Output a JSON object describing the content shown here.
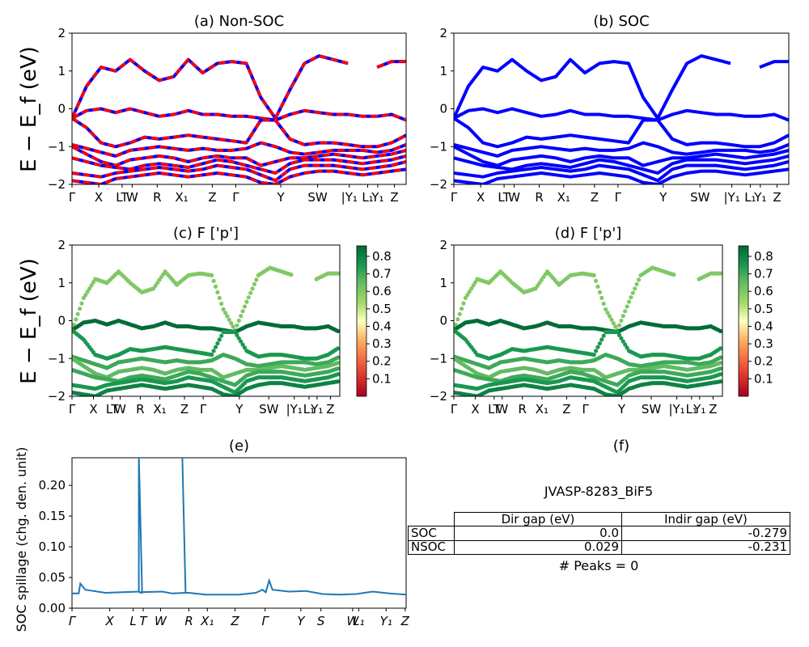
{
  "chart_data": [
    {
      "id": "a",
      "type": "line",
      "title": "(a) Non-SOC",
      "ylabel": "E − E_f (eV)",
      "ylim": [
        -2,
        2
      ],
      "yticks": [
        "2",
        "1",
        "0",
        "−1",
        "−2"
      ],
      "xticks": [
        "Γ",
        "X",
        "LT",
        "W",
        "R",
        "X₁",
        "Z",
        "Γ",
        "Y",
        "SW",
        "|Y₁",
        "L₁",
        "Y₁",
        "Z"
      ],
      "series": [
        {
          "color": "#0000ff",
          "style": "solid"
        },
        {
          "color": "#ff0000",
          "style": "dashed"
        }
      ],
      "bands_eV": [
        [
          -0.25,
          0.6,
          1.1,
          1.0,
          1.3,
          1.0,
          0.75,
          0.85,
          1.3,
          0.95,
          1.2,
          1.25,
          1.2,
          0.3,
          -0.25,
          0.5,
          1.2,
          1.4,
          1.3,
          1.2,
          null,
          1.1,
          1.25,
          1.25
        ],
        [
          -0.25,
          -0.05,
          0.0,
          -0.1,
          0.0,
          -0.1,
          -0.2,
          -0.15,
          -0.05,
          -0.15,
          -0.15,
          -0.2,
          -0.2,
          -0.25,
          -0.3,
          -0.15,
          -0.05,
          -0.1,
          -0.15,
          -0.15,
          -0.2,
          -0.2,
          -0.15,
          -0.3
        ],
        [
          -0.25,
          -0.5,
          -0.9,
          -1.0,
          -0.9,
          -0.75,
          -0.8,
          -0.75,
          -0.7,
          -0.75,
          -0.8,
          -0.85,
          -0.9,
          -0.3,
          -0.3,
          -0.8,
          -0.95,
          -0.9,
          -0.9,
          -0.95,
          -1.0,
          -1.0,
          -0.9,
          -0.7
        ],
        [
          -0.95,
          -1.05,
          -1.15,
          -1.25,
          -1.1,
          -1.05,
          -1.0,
          -1.05,
          -1.1,
          -1.05,
          -1.1,
          -1.1,
          -1.05,
          -0.9,
          -1.0,
          -1.15,
          -1.2,
          -1.15,
          -1.1,
          -1.1,
          -1.1,
          -1.15,
          -1.1,
          -0.95
        ],
        [
          -1.0,
          -1.2,
          -1.4,
          -1.5,
          -1.35,
          -1.3,
          -1.25,
          -1.3,
          -1.4,
          -1.3,
          -1.25,
          -1.3,
          -1.3,
          -1.5,
          -1.4,
          -1.3,
          -1.3,
          -1.25,
          -1.2,
          -1.25,
          -1.3,
          -1.25,
          -1.2,
          -1.1
        ],
        [
          -1.3,
          -1.4,
          -1.5,
          -1.55,
          -1.6,
          -1.5,
          -1.45,
          -1.5,
          -1.55,
          -1.45,
          -1.35,
          -1.4,
          -1.5,
          -1.6,
          -1.7,
          -1.45,
          -1.35,
          -1.35,
          -1.35,
          -1.4,
          -1.45,
          -1.4,
          -1.35,
          -1.25
        ],
        [
          -1.7,
          -1.75,
          -1.8,
          -1.7,
          -1.65,
          -1.6,
          -1.55,
          -1.6,
          -1.65,
          -1.6,
          -1.5,
          -1.55,
          -1.6,
          -1.75,
          -1.9,
          -1.6,
          -1.5,
          -1.5,
          -1.5,
          -1.55,
          -1.6,
          -1.55,
          -1.5,
          -1.4
        ],
        [
          -1.9,
          -1.95,
          -2.0,
          -1.85,
          -1.8,
          -1.75,
          -1.7,
          -1.75,
          -1.8,
          -1.75,
          -1.7,
          -1.75,
          -1.8,
          -1.95,
          -2.0,
          -1.8,
          -1.7,
          -1.65,
          -1.65,
          -1.7,
          -1.75,
          -1.7,
          -1.65,
          -1.6
        ]
      ]
    },
    {
      "id": "b",
      "type": "line",
      "title": "(b) SOC",
      "ylim": [
        -2,
        2
      ],
      "yticks": [
        "2",
        "1",
        "0",
        "−1",
        "−2"
      ],
      "xticks": [
        "Γ",
        "X",
        "LT",
        "W",
        "R",
        "X₁",
        "Z",
        "Γ",
        "Y",
        "SW",
        "|Y₁",
        "L₁",
        "Y₁",
        "Z"
      ],
      "series": [
        {
          "color": "#0000ff",
          "style": "solid"
        }
      ],
      "same_bands_as": "a"
    },
    {
      "id": "c",
      "type": "scatter",
      "title": "(c)  F ['p']",
      "ylabel": "E − E_f (eV)",
      "ylim": [
        -2,
        2
      ],
      "yticks": [
        "2",
        "1",
        "0",
        "−1",
        "−2"
      ],
      "xticks": [
        "Γ",
        "X",
        "LT",
        "W",
        "R",
        "X₁",
        "Z",
        "Γ",
        "Y",
        "SW",
        "|Y₁",
        "L₁",
        "Y₁",
        "Z"
      ],
      "colormap": "RdYlGn",
      "colorbar_range": [
        0.0,
        0.86
      ],
      "colorbar_ticks": [
        "0.8",
        "0.7",
        "0.6",
        "0.5",
        "0.4",
        "0.3",
        "0.2",
        "0.1"
      ],
      "band_weight": [
        0.6,
        0.85,
        0.75,
        0.7,
        0.65,
        0.7,
        0.75,
        0.8
      ]
    },
    {
      "id": "d",
      "type": "scatter",
      "title": "(d) F ['p']",
      "ylim": [
        -2,
        2
      ],
      "yticks": [
        "2",
        "1",
        "0",
        "−1",
        "−2"
      ],
      "xticks": [
        "Γ",
        "X",
        "LT",
        "W",
        "R",
        "X₁",
        "Z",
        "Γ",
        "Y",
        "SW",
        "|Y₁",
        "L₁",
        "Y₁",
        "Z"
      ],
      "colormap": "RdYlGn",
      "colorbar_range": [
        0.0,
        0.86
      ],
      "colorbar_ticks": [
        "0.8",
        "0.7",
        "0.6",
        "0.5",
        "0.4",
        "0.3",
        "0.2",
        "0.1"
      ],
      "band_weight": [
        0.6,
        0.85,
        0.75,
        0.7,
        0.65,
        0.7,
        0.75,
        0.8
      ]
    },
    {
      "id": "e",
      "type": "line",
      "title": "(e)",
      "ylabel": "SOC spillage (chg. den. unit)",
      "ylim": [
        0,
        0.245
      ],
      "yticks": [
        "0.20",
        "0.15",
        "0.10",
        "0.05",
        "0.00"
      ],
      "xticks": [
        "Γ",
        "X",
        "L",
        "T",
        "W",
        "R",
        "X₁",
        "Z",
        "Γ",
        "Y",
        "S",
        "W",
        "L₁",
        "Y₁",
        "Z"
      ],
      "series": [
        {
          "color": "#1f77b4",
          "style": "solid"
        }
      ],
      "x": [
        0,
        0.02,
        0.025,
        0.04,
        0.1,
        0.2,
        0.2,
        0.21,
        0.2,
        0.27,
        0.3,
        0.34,
        0.33,
        0.34,
        0.35,
        0.4,
        0.45,
        0.5,
        0.55,
        0.57,
        0.58,
        0.59,
        0.6,
        0.65,
        0.7,
        0.75,
        0.8,
        0.85,
        0.9,
        0.95,
        1.0
      ],
      "values": [
        0.024,
        0.024,
        0.04,
        0.03,
        0.025,
        0.027,
        0.25,
        0.025,
        0.026,
        0.027,
        0.024,
        0.025,
        0.25,
        0.025,
        0.025,
        0.022,
        0.022,
        0.022,
        0.025,
        0.03,
        0.026,
        0.045,
        0.03,
        0.027,
        0.028,
        0.023,
        0.022,
        0.023,
        0.027,
        0.024,
        0.022
      ]
    }
  ],
  "panel_f": {
    "title": "(f)",
    "material": "JVASP-8283_BiF5",
    "table": {
      "headers": [
        "Dir gap (eV)",
        "Indir gap (eV)"
      ],
      "rows": [
        {
          "label": "SOC",
          "dir": "0.0",
          "indir": "-0.279"
        },
        {
          "label": "NSOC",
          "dir": "0.029",
          "indir": "-0.231"
        }
      ]
    },
    "peaks": "# Peaks = 0"
  }
}
